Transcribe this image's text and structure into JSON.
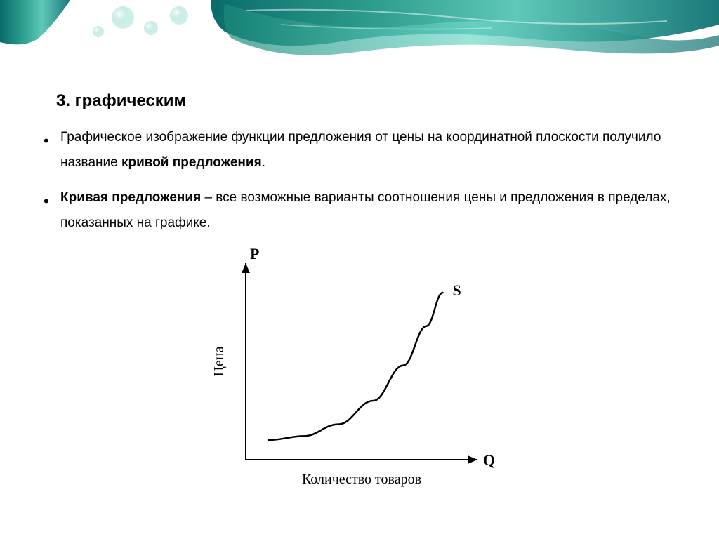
{
  "heading": "3. графическим",
  "bullets": [
    {
      "prefix": "Графическое изображение функции предложения от цены на координатной плоскости получило название ",
      "bold": "кривой предложения",
      "suffix": "."
    },
    {
      "bold_start": "Кривая предложения",
      "rest": " – все возможные варианты соотношения цены и предложения в пределах, показанных на графике."
    }
  ],
  "chart": {
    "type": "line",
    "y_axis_label": "P",
    "y_axis_label_vertical": "Цена",
    "x_axis_label": "Q",
    "x_axis_label_below": "Количество товаров",
    "curve_label": "S",
    "curve_points": [
      {
        "x": 0.1,
        "y": 0.9
      },
      {
        "x": 0.25,
        "y": 0.88
      },
      {
        "x": 0.4,
        "y": 0.82
      },
      {
        "x": 0.55,
        "y": 0.7
      },
      {
        "x": 0.68,
        "y": 0.52
      },
      {
        "x": 0.78,
        "y": 0.32
      },
      {
        "x": 0.85,
        "y": 0.15
      }
    ],
    "axis_color": "#000000",
    "curve_color": "#000000",
    "curve_width": 2.5,
    "axis_width": 2,
    "label_fontsize": 22,
    "axis_label_fontsize": 20,
    "background_color": "#ffffff",
    "xlim": [
      0,
      1
    ],
    "ylim": [
      0,
      1
    ]
  },
  "banner": {
    "colors": [
      "#0a6b6b",
      "#2a9a8a",
      "#5fc8b8",
      "#a8e0d8",
      "#ffffff"
    ],
    "gap_start": 0.1,
    "gap_end": 0.3
  },
  "text_color": "#000000",
  "body_fontsize": 19,
  "heading_fontsize": 24
}
